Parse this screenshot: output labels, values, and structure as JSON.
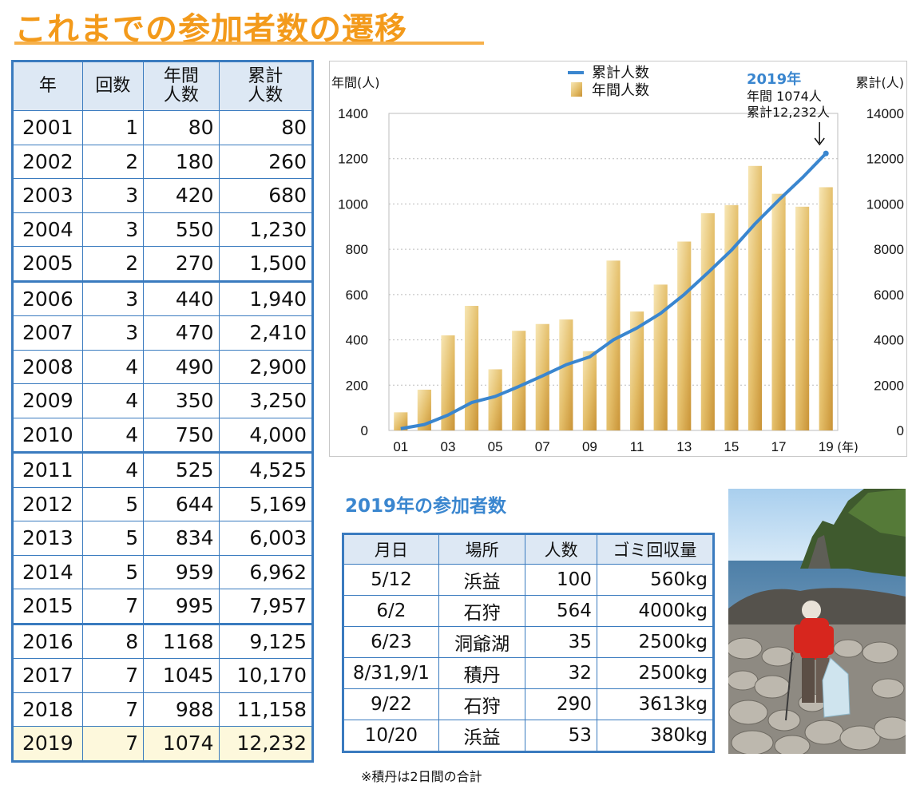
{
  "page_title": "これまでの参加者数の遷移",
  "history_table": {
    "headers": [
      "年",
      "回数",
      "年間\n人数",
      "累計\n人数"
    ],
    "rows": [
      [
        "2001",
        "1",
        "80",
        "80"
      ],
      [
        "2002",
        "2",
        "180",
        "260"
      ],
      [
        "2003",
        "3",
        "420",
        "680"
      ],
      [
        "2004",
        "3",
        "550",
        "1,230"
      ],
      [
        "2005",
        "2",
        "270",
        "1,500"
      ],
      [
        "2006",
        "3",
        "440",
        "1,940"
      ],
      [
        "2007",
        "3",
        "470",
        "2,410"
      ],
      [
        "2008",
        "4",
        "490",
        "2,900"
      ],
      [
        "2009",
        "4",
        "350",
        "3,250"
      ],
      [
        "2010",
        "4",
        "750",
        "4,000"
      ],
      [
        "2011",
        "4",
        "525",
        "4,525"
      ],
      [
        "2012",
        "5",
        "644",
        "5,169"
      ],
      [
        "2013",
        "5",
        "834",
        "6,003"
      ],
      [
        "2014",
        "5",
        "959",
        "6,962"
      ],
      [
        "2015",
        "7",
        "995",
        "7,957"
      ],
      [
        "2016",
        "8",
        "1168",
        "9,125"
      ],
      [
        "2017",
        "7",
        "1045",
        "10,170"
      ],
      [
        "2018",
        "7",
        "988",
        "11,158"
      ],
      [
        "2019",
        "7",
        "1074",
        "12,232"
      ]
    ]
  },
  "chart_data": {
    "type": "bar",
    "x": [
      "2001",
      "2002",
      "2003",
      "2004",
      "2005",
      "2006",
      "2007",
      "2008",
      "2009",
      "2010",
      "2011",
      "2012",
      "2013",
      "2014",
      "2015",
      "2016",
      "2017",
      "2018",
      "2019"
    ],
    "xtick_labels": [
      "01",
      "03",
      "05",
      "07",
      "09",
      "11",
      "13",
      "15",
      "17",
      "19"
    ],
    "xunit": "(年)",
    "ylabel_left": "年間(人)",
    "ylabel_right": "累計(人)",
    "ylim_left": [
      0,
      1400
    ],
    "yticks_left": [
      "0",
      "200",
      "400",
      "600",
      "800",
      "1000",
      "1200",
      "1400"
    ],
    "ylim_right": [
      0,
      14000
    ],
    "yticks_right": [
      "0",
      "2000",
      "4000",
      "6000",
      "8000",
      "10000",
      "12000",
      "14000"
    ],
    "grid": true,
    "legend_position": "top",
    "series": [
      {
        "name": "年間人数",
        "type": "bar",
        "axis": "left",
        "color": "#e8c572",
        "values": [
          80,
          180,
          420,
          550,
          270,
          440,
          470,
          490,
          350,
          750,
          525,
          644,
          834,
          959,
          995,
          1168,
          1045,
          988,
          1074
        ]
      },
      {
        "name": "累計人数",
        "type": "line",
        "axis": "right",
        "color": "#3a86cf",
        "values": [
          80,
          260,
          680,
          1230,
          1500,
          1940,
          2410,
          2900,
          3250,
          4000,
          4525,
          5169,
          6003,
          6962,
          7957,
          9125,
          10170,
          11158,
          12232
        ]
      }
    ],
    "annotation": {
      "title": "2019年",
      "line1": "年間 1074人",
      "line2": "累計12,232人"
    }
  },
  "section_2019": {
    "title": "2019年の参加者数",
    "headers": [
      "月日",
      "場所",
      "人数",
      "ゴミ回収量"
    ],
    "rows": [
      [
        "5/12",
        "浜益",
        "100",
        "560kg"
      ],
      [
        "6/2",
        "石狩",
        "564",
        "4000kg"
      ],
      [
        "6/23",
        "洞爺湖",
        "35",
        "2500kg"
      ],
      [
        "8/31,9/1",
        "積丹",
        "32",
        "2500kg"
      ],
      [
        "9/22",
        "石狩",
        "290",
        "3613kg"
      ],
      [
        "10/20",
        "浜益",
        "53",
        "380kg"
      ]
    ],
    "note": "※積丹は2日間の合計"
  }
}
